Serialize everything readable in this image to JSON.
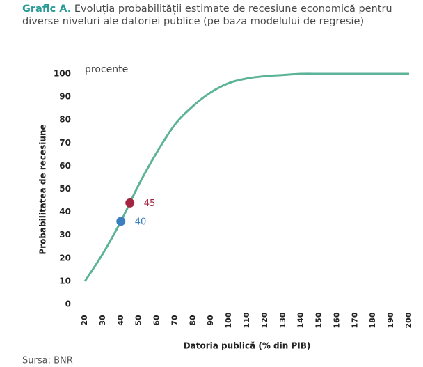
{
  "chart_data": {
    "type": "line",
    "title_prefix": "Grafic A.",
    "title": "Evoluția probabilității estimate de recesiune economică pentru diverse niveluri ale datoriei publice (pe baza modelului de regresie)",
    "unit_label": "procente",
    "y_label": "Probabilitatea de recesiune",
    "x_label": "Datoria publică (% din PIB)",
    "source": "Sursa: BNR",
    "series": [
      {
        "name": "Probabilitate",
        "color": "#5cb398",
        "x": [
          20,
          30,
          40,
          50,
          60,
          70,
          80,
          90,
          100,
          110,
          120,
          130,
          140,
          150,
          160,
          170,
          180,
          190,
          200
        ],
        "values": [
          10,
          22,
          36,
          52,
          66,
          78,
          86,
          92,
          96,
          98,
          99,
          99.5,
          100,
          100,
          100,
          100,
          100,
          100,
          100
        ]
      }
    ],
    "points": [
      {
        "x": 40,
        "y": 36,
        "label": "40",
        "color": "#3b7fc0"
      },
      {
        "x": 45,
        "y": 44,
        "label": "45",
        "color": "#a3243f"
      }
    ],
    "xlim": [
      20,
      200
    ],
    "xticks": [
      20,
      30,
      40,
      50,
      60,
      70,
      80,
      90,
      100,
      110,
      120,
      130,
      140,
      150,
      160,
      170,
      180,
      190,
      200
    ],
    "ylim": [
      0,
      100
    ],
    "yticks": [
      0,
      10,
      20,
      30,
      40,
      50,
      60,
      70,
      80,
      90,
      100
    ]
  }
}
